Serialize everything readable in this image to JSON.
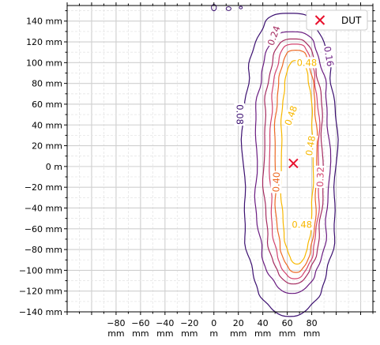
{
  "chart_data": {
    "type": "contour",
    "title": "",
    "xlabel": "",
    "ylabel": "",
    "xlim": [
      -120,
      130
    ],
    "ylim": [
      -140,
      155
    ],
    "grid": true,
    "legend_placement": "top-right",
    "x_ticks": [
      {
        "value": -80,
        "line1": "−80",
        "line2": "mm"
      },
      {
        "value": -60,
        "line1": "−60",
        "line2": "mm"
      },
      {
        "value": -40,
        "line1": "−40",
        "line2": "mm"
      },
      {
        "value": -20,
        "line1": "−20",
        "line2": "mm"
      },
      {
        "value": 0,
        "line1": "0",
        "line2": "m"
      },
      {
        "value": 20,
        "line1": "20",
        "line2": "mm"
      },
      {
        "value": 40,
        "line1": "40",
        "line2": "mm"
      },
      {
        "value": 60,
        "line1": "60",
        "line2": "mm"
      },
      {
        "value": 80,
        "line1": "80",
        "line2": "mm"
      }
    ],
    "y_ticks": [
      {
        "value": 140,
        "label": "140 mm"
      },
      {
        "value": 120,
        "label": "120 mm"
      },
      {
        "value": 100,
        "label": "100 mm"
      },
      {
        "value": 80,
        "label": "80 mm"
      },
      {
        "value": 60,
        "label": "60 mm"
      },
      {
        "value": 40,
        "label": "40 mm"
      },
      {
        "value": 20,
        "label": "20 mm"
      },
      {
        "value": 0,
        "label": "0 m"
      },
      {
        "value": -20,
        "label": "−20 mm"
      },
      {
        "value": -40,
        "label": "−40 mm"
      },
      {
        "value": -60,
        "label": "−60 mm"
      },
      {
        "value": -80,
        "label": "−80 mm"
      },
      {
        "value": -100,
        "label": "−100 mm"
      },
      {
        "value": -120,
        "label": "−120 mm"
      },
      {
        "value": -140,
        "label": "−140 mm"
      }
    ],
    "contours": [
      {
        "level": 0.08,
        "color": "#3b0f70",
        "center": [
          62,
          3
        ],
        "half_width": 38,
        "half_height": 146
      },
      {
        "level": 0.16,
        "color": "#6a1c81",
        "center": [
          64,
          5
        ],
        "half_width": 30,
        "half_height": 126
      },
      {
        "level": 0.24,
        "color": "#a52c60",
        "center": [
          65,
          6
        ],
        "half_width": 24,
        "half_height": 118
      },
      {
        "level": 0.32,
        "color": "#d3436e",
        "center": [
          66,
          6
        ],
        "half_width": 20,
        "half_height": 113
      },
      {
        "level": 0.4,
        "color": "#ed6925",
        "center": [
          67,
          6
        ],
        "half_width": 17,
        "half_height": 107
      },
      {
        "level": 0.48,
        "color": "#f8b800",
        "center": [
          68,
          5
        ],
        "half_width": 13,
        "half_height": 98
      }
    ],
    "contour_labels": [
      {
        "text": "0.08",
        "x": 21,
        "y": 50,
        "rotation": 90,
        "color": "#3b0f70"
      },
      {
        "text": "0.16",
        "x": 94,
        "y": 106,
        "rotation": 80,
        "color": "#6a1c81"
      },
      {
        "text": "0.24",
        "x": 49,
        "y": 126,
        "rotation": -70,
        "color": "#a52c60"
      },
      {
        "text": "0.32",
        "x": 87,
        "y": -10,
        "rotation": -88,
        "color": "#d3436e"
      },
      {
        "text": "0.40",
        "x": 51,
        "y": -15,
        "rotation": -88,
        "color": "#ed6925"
      },
      {
        "text": "0.48",
        "x": 76,
        "y": 100,
        "rotation": 0,
        "color": "#f8b800"
      },
      {
        "text": "0.48",
        "x": 63,
        "y": 49,
        "rotation": -70,
        "color": "#f8b800"
      },
      {
        "text": "0.48",
        "x": 79,
        "y": 20,
        "rotation": -80,
        "color": "#f8b800"
      },
      {
        "text": "0.48",
        "x": 72,
        "y": -56,
        "rotation": 0,
        "color": "#f8b800"
      }
    ],
    "small_islands": [
      {
        "x": 0,
        "y": 153,
        "rx": 2,
        "ry": 3,
        "color": "#3b0f70"
      },
      {
        "x": 12,
        "y": 152,
        "rx": 2,
        "ry": 1.8,
        "color": "#3b0f70"
      },
      {
        "x": 22,
        "y": 153,
        "rx": 1.2,
        "ry": 1.2,
        "color": "#3b0f70"
      }
    ],
    "markers": [
      {
        "name": "DUT",
        "x": 65,
        "y": 3,
        "symbol": "x",
        "color": "#e8112d"
      }
    ],
    "legend": [
      {
        "label": "DUT",
        "symbol": "x",
        "color": "#e8112d"
      }
    ]
  }
}
